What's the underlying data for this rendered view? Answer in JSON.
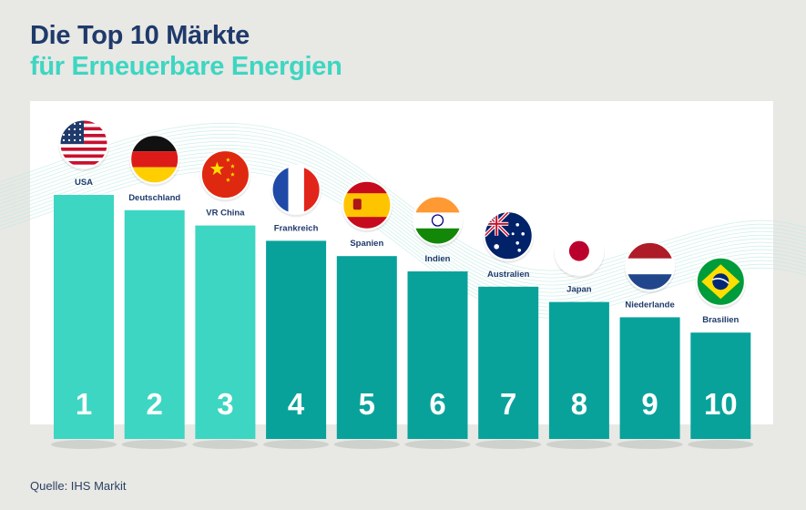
{
  "title": {
    "line1": "Die Top 10 Märkte",
    "line2": "für Erneuerbare Energien"
  },
  "source": "Quelle: IHS Markit",
  "colors": {
    "title_primary": "#1f3a6b",
    "title_accent": "#3dd6c2",
    "bar_light": "#3dd6c2",
    "bar_dark": "#08a29b",
    "rank_text": "#ffffff",
    "country_text": "#1f3a6b"
  },
  "chart_data": {
    "type": "bar",
    "categories": [
      "USA",
      "Deutschland",
      "VR China",
      "Frankreich",
      "Spanien",
      "Indien",
      "Australien",
      "Japan",
      "Niederlande",
      "Brasilien"
    ],
    "ranks": [
      "1",
      "2",
      "3",
      "4",
      "5",
      "6",
      "7",
      "8",
      "9",
      "10"
    ],
    "flags": [
      "us-flag",
      "germany-flag",
      "china-flag",
      "france-flag",
      "spain-flag",
      "india-flag",
      "australia-flag",
      "japan-flag",
      "netherlands-flag",
      "brazil-flag"
    ],
    "values": [
      10,
      9,
      8,
      7,
      6,
      5,
      4,
      3,
      2,
      1
    ],
    "highlight_top": 3,
    "xlabel": "",
    "ylabel": "",
    "grid": false,
    "legend": "none"
  }
}
